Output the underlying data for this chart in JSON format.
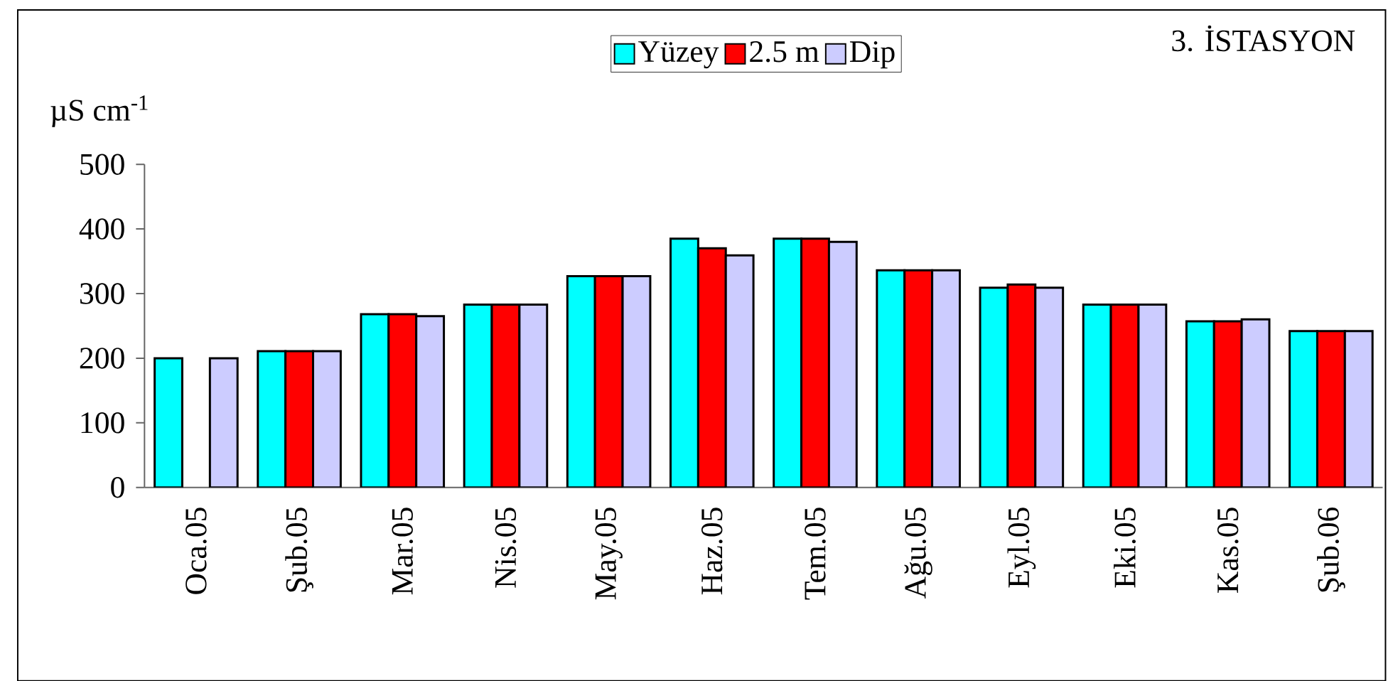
{
  "chart_data": {
    "type": "bar",
    "title": "3. İSTASYON",
    "ylabel": "µS cm$^{-1}$",
    "categories": [
      "Oca.05",
      "Şub.05",
      "Mar.05",
      "Nis.05",
      "May.05",
      "Haz.05",
      "Tem.05",
      "Ağu.05",
      "Eyl.05",
      "Eki.05",
      "Kas.05",
      "Şub.06"
    ],
    "series": [
      {
        "name": "Yüzey",
        "color": "#00ffff",
        "values": [
          200,
          211,
          268,
          283,
          327,
          385,
          385,
          336,
          309,
          283,
          257,
          242
        ]
      },
      {
        "name": "2.5 m",
        "color": "#ff0000",
        "values": [
          null,
          211,
          268,
          283,
          327,
          370,
          385,
          336,
          314,
          283,
          257,
          242
        ]
      },
      {
        "name": "Dip",
        "color": "#ccccff",
        "values": [
          200,
          211,
          265,
          283,
          327,
          359,
          380,
          336,
          309,
          283,
          260,
          242
        ]
      }
    ],
    "ylim": [
      0,
      500
    ],
    "yticks": [
      0,
      100,
      200,
      300,
      400,
      500
    ],
    "grid": false,
    "legend": "top"
  }
}
